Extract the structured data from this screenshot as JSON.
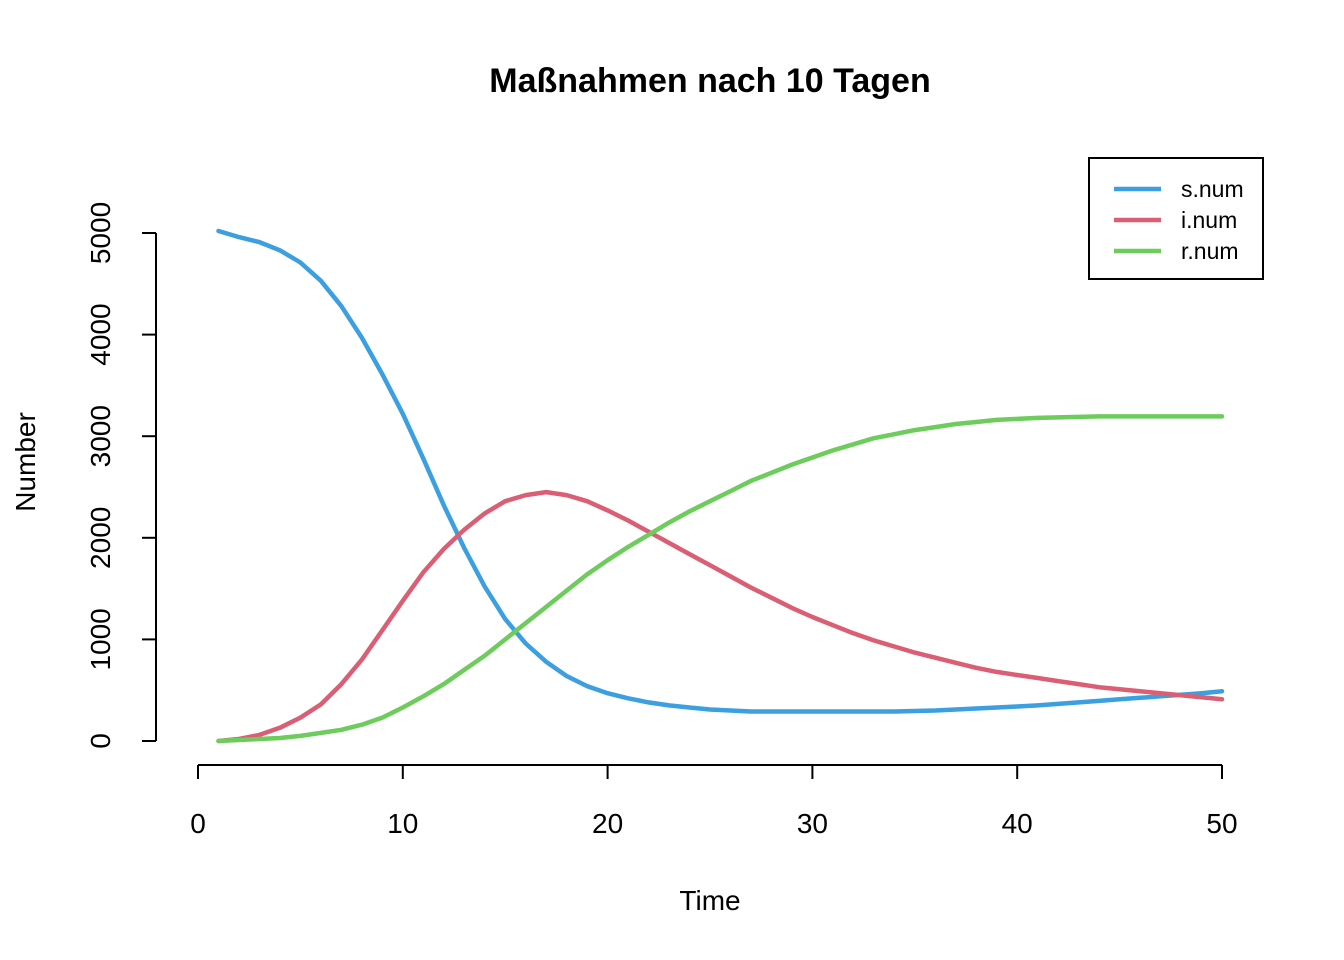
{
  "chart_data": {
    "type": "line",
    "title": "Maßnahmen nach 10 Tagen",
    "xlabel": "Time",
    "ylabel": "Number",
    "xlim": [
      0,
      50
    ],
    "ylim": [
      0,
      5000
    ],
    "x_ticks": [
      0,
      10,
      20,
      30,
      40,
      50
    ],
    "y_ticks": [
      0,
      1000,
      2000,
      3000,
      4000,
      5000
    ],
    "grid": false,
    "legend_position": "top-right",
    "x": [
      1,
      2,
      3,
      4,
      5,
      6,
      7,
      8,
      9,
      10,
      11,
      12,
      13,
      14,
      15,
      16,
      17,
      18,
      19,
      20,
      21,
      22,
      23,
      24,
      25,
      26,
      27,
      28,
      29,
      30,
      31,
      32,
      33,
      34,
      35,
      36,
      37,
      38,
      39,
      40,
      41,
      42,
      43,
      44,
      45,
      46,
      47,
      48,
      49,
      50
    ],
    "series": [
      {
        "name": "s.num",
        "color": "#3B9FE0",
        "values": [
          5020,
          4960,
          4910,
          4830,
          4710,
          4530,
          4280,
          3970,
          3610,
          3220,
          2780,
          2320,
          1900,
          1520,
          1200,
          960,
          780,
          640,
          540,
          470,
          420,
          380,
          350,
          330,
          310,
          300,
          290,
          290,
          290,
          290,
          290,
          290,
          290,
          290,
          295,
          300,
          310,
          320,
          330,
          340,
          350,
          365,
          380,
          395,
          410,
          425,
          440,
          455,
          470,
          490
        ]
      },
      {
        "name": "i.num",
        "color": "#DA5F74",
        "values": [
          0,
          20,
          60,
          130,
          230,
          360,
          560,
          800,
          1090,
          1380,
          1660,
          1890,
          2080,
          2240,
          2360,
          2420,
          2450,
          2420,
          2360,
          2270,
          2170,
          2060,
          1950,
          1840,
          1730,
          1620,
          1510,
          1410,
          1310,
          1220,
          1140,
          1060,
          990,
          930,
          870,
          820,
          770,
          720,
          680,
          650,
          620,
          590,
          560,
          530,
          510,
          490,
          470,
          450,
          430,
          410
        ]
      },
      {
        "name": "r.num",
        "color": "#6DCC5C",
        "values": [
          0,
          10,
          20,
          30,
          50,
          80,
          110,
          160,
          230,
          330,
          440,
          560,
          700,
          840,
          1000,
          1160,
          1320,
          1480,
          1640,
          1780,
          1910,
          2030,
          2150,
          2260,
          2360,
          2460,
          2560,
          2640,
          2720,
          2790,
          2860,
          2920,
          2980,
          3020,
          3060,
          3090,
          3120,
          3140,
          3160,
          3170,
          3180,
          3185,
          3190,
          3195,
          3195,
          3195,
          3195,
          3195,
          3195,
          3195
        ]
      }
    ]
  }
}
